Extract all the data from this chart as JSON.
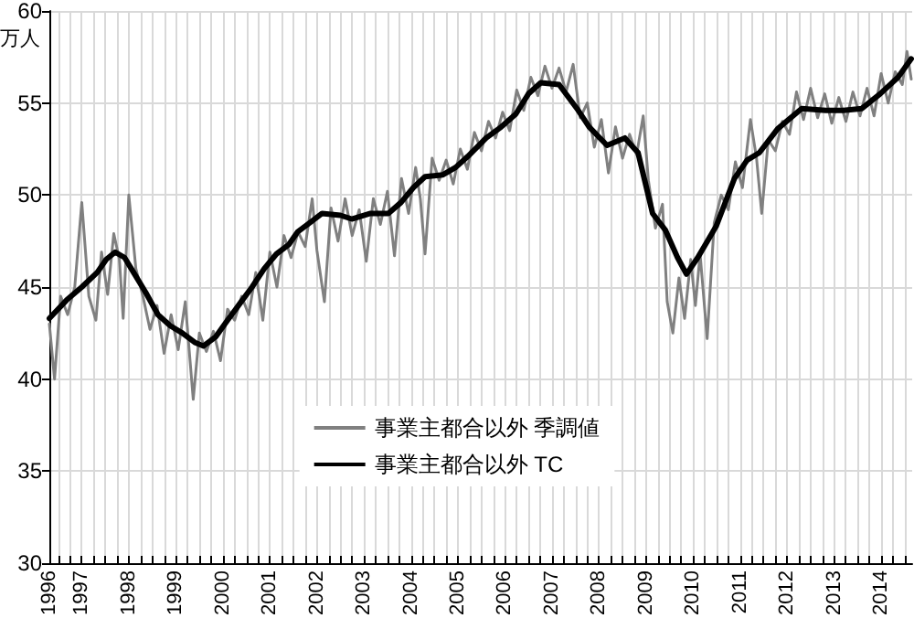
{
  "chart_data": {
    "type": "line",
    "ylabel": "万人",
    "xlim": [
      1996.31,
      2014.66
    ],
    "ylim": [
      30,
      60
    ],
    "yticks": [
      30,
      35,
      40,
      45,
      50,
      55,
      60
    ],
    "xticks": [
      {
        "value": 1996.31,
        "label": "1996"
      },
      {
        "value": 1996.5,
        "label": null
      },
      {
        "value": 1996.75,
        "label": null
      },
      1997,
      {
        "value": 1997.25,
        "label": null
      },
      {
        "value": 1997.5,
        "label": null
      },
      {
        "value": 1997.75,
        "label": null
      },
      1998,
      {
        "value": 1998.25,
        "label": null
      },
      {
        "value": 1998.5,
        "label": null
      },
      {
        "value": 1998.75,
        "label": null
      },
      1999,
      {
        "value": 1999.25,
        "label": null
      },
      {
        "value": 1999.5,
        "label": null
      },
      {
        "value": 1999.75,
        "label": null
      },
      2000,
      {
        "value": 2000.25,
        "label": null
      },
      {
        "value": 2000.5,
        "label": null
      },
      {
        "value": 2000.75,
        "label": null
      },
      2001,
      {
        "value": 2001.25,
        "label": null
      },
      {
        "value": 2001.5,
        "label": null
      },
      {
        "value": 2001.75,
        "label": null
      },
      2002,
      {
        "value": 2002.25,
        "label": null
      },
      {
        "value": 2002.5,
        "label": null
      },
      {
        "value": 2002.75,
        "label": null
      },
      2003,
      {
        "value": 2003.25,
        "label": null
      },
      {
        "value": 2003.5,
        "label": null
      },
      {
        "value": 2003.75,
        "label": null
      },
      2004,
      {
        "value": 2004.25,
        "label": null
      },
      {
        "value": 2004.5,
        "label": null
      },
      {
        "value": 2004.75,
        "label": null
      },
      2005,
      {
        "value": 2005.25,
        "label": null
      },
      {
        "value": 2005.5,
        "label": null
      },
      {
        "value": 2005.75,
        "label": null
      },
      2006,
      {
        "value": 2006.25,
        "label": null
      },
      {
        "value": 2006.5,
        "label": null
      },
      {
        "value": 2006.75,
        "label": null
      },
      2007,
      {
        "value": 2007.25,
        "label": null
      },
      {
        "value": 2007.5,
        "label": null
      },
      {
        "value": 2007.75,
        "label": null
      },
      2008,
      {
        "value": 2008.25,
        "label": null
      },
      {
        "value": 2008.5,
        "label": null
      },
      {
        "value": 2008.75,
        "label": null
      },
      2009,
      {
        "value": 2009.25,
        "label": null
      },
      {
        "value": 2009.5,
        "label": null
      },
      {
        "value": 2009.75,
        "label": null
      },
      2010,
      {
        "value": 2010.25,
        "label": null
      },
      {
        "value": 2010.5,
        "label": null
      },
      {
        "value": 2010.75,
        "label": null
      },
      2011,
      {
        "value": 2011.25,
        "label": null
      },
      {
        "value": 2011.5,
        "label": null
      },
      {
        "value": 2011.75,
        "label": null
      },
      2012,
      {
        "value": 2012.25,
        "label": null
      },
      {
        "value": 2012.5,
        "label": null
      },
      {
        "value": 2012.75,
        "label": null
      },
      2013,
      {
        "value": 2013.25,
        "label": null
      },
      {
        "value": 2013.5,
        "label": null
      },
      {
        "value": 2013.75,
        "label": null
      },
      2014,
      {
        "value": 2014.25,
        "label": null
      },
      {
        "value": 2014.5,
        "label": null
      }
    ],
    "grid": true,
    "legend": "bottom",
    "marker": "none",
    "line_style": "solid",
    "series": [
      {
        "name": "事業主都合以外 季調値",
        "color": "#808080",
        "x": [
          1996.31,
          1996.42,
          1996.55,
          1996.7,
          1996.85,
          1997.0,
          1997.15,
          1997.3,
          1997.42,
          1997.55,
          1997.68,
          1997.8,
          1997.88,
          1998.0,
          1998.15,
          1998.3,
          1998.45,
          1998.6,
          1998.75,
          1998.9,
          1999.05,
          1999.2,
          1999.37,
          1999.5,
          1999.65,
          1999.8,
          1999.95,
          2000.1,
          2000.25,
          2000.4,
          2000.55,
          2000.7,
          2000.85,
          2001.0,
          2001.15,
          2001.3,
          2001.45,
          2001.6,
          2001.75,
          2001.9,
          2002.0,
          2002.16,
          2002.3,
          2002.45,
          2002.6,
          2002.75,
          2002.9,
          2003.05,
          2003.2,
          2003.35,
          2003.5,
          2003.65,
          2003.8,
          2003.95,
          2004.1,
          2004.2,
          2004.3,
          2004.45,
          2004.6,
          2004.75,
          2004.9,
          2005.05,
          2005.2,
          2005.35,
          2005.5,
          2005.65,
          2005.8,
          2005.95,
          2006.1,
          2006.25,
          2006.4,
          2006.55,
          2006.7,
          2006.85,
          2007.0,
          2007.15,
          2007.3,
          2007.45,
          2007.6,
          2007.75,
          2007.9,
          2008.05,
          2008.2,
          2008.35,
          2008.5,
          2008.65,
          2008.8,
          2008.94,
          2009.05,
          2009.2,
          2009.35,
          2009.45,
          2009.57,
          2009.7,
          2009.82,
          2009.95,
          2010.05,
          2010.15,
          2010.3,
          2010.45,
          2010.6,
          2010.75,
          2010.9,
          2011.05,
          2011.22,
          2011.35,
          2011.46,
          2011.6,
          2011.75,
          2011.9,
          2012.05,
          2012.2,
          2012.35,
          2012.5,
          2012.65,
          2012.8,
          2012.95,
          2013.1,
          2013.25,
          2013.4,
          2013.55,
          2013.7,
          2013.85,
          2014.0,
          2014.15,
          2014.3,
          2014.45,
          2014.55,
          2014.64
        ],
        "values": [
          43.0,
          40.0,
          44.5,
          43.5,
          45.0,
          49.6,
          44.5,
          43.2,
          46.9,
          44.6,
          47.9,
          46.5,
          43.3,
          50.0,
          46.0,
          44.5,
          42.7,
          44.0,
          41.4,
          43.5,
          41.6,
          44.2,
          38.9,
          42.5,
          41.5,
          42.6,
          41.0,
          43.8,
          43.2,
          44.5,
          43.5,
          45.8,
          43.2,
          46.9,
          45.0,
          47.8,
          46.6,
          48.0,
          47.2,
          49.8,
          47.0,
          44.2,
          49.3,
          47.5,
          49.8,
          47.8,
          49.2,
          46.4,
          49.8,
          48.4,
          50.2,
          46.7,
          50.9,
          49.0,
          51.5,
          49.8,
          46.8,
          52.0,
          50.8,
          51.9,
          50.6,
          52.5,
          51.4,
          53.4,
          52.4,
          54.0,
          53.1,
          54.5,
          53.5,
          55.7,
          54.6,
          56.4,
          55.4,
          57.0,
          55.8,
          56.9,
          55.6,
          57.1,
          54.2,
          55.0,
          52.6,
          54.1,
          51.2,
          53.7,
          52.0,
          53.3,
          52.2,
          54.3,
          50.8,
          48.2,
          49.5,
          44.2,
          42.5,
          45.5,
          43.3,
          46.5,
          44.0,
          46.8,
          42.2,
          48.5,
          50.0,
          49.2,
          51.8,
          50.4,
          54.1,
          52.0,
          49.0,
          53.0,
          52.4,
          54.0,
          53.3,
          55.6,
          54.1,
          55.8,
          54.2,
          55.5,
          53.9,
          55.3,
          54.0,
          55.6,
          54.3,
          55.8,
          54.3,
          56.6,
          55.0,
          56.7,
          56.0,
          57.8,
          56.3
        ]
      },
      {
        "name": "事業主都合以外 TC",
        "color": "#000000",
        "x": [
          1996.31,
          1996.68,
          1997.0,
          1997.33,
          1997.52,
          1997.71,
          1997.91,
          1998.1,
          1998.36,
          1998.62,
          1998.88,
          1999.14,
          1999.4,
          1999.59,
          1999.85,
          2000.1,
          2000.36,
          2000.62,
          2000.88,
          2001.14,
          2001.4,
          2001.59,
          2001.85,
          2002.11,
          2002.5,
          2002.74,
          2003.14,
          2003.52,
          2003.79,
          2004.05,
          2004.3,
          2004.68,
          2004.95,
          2005.21,
          2005.6,
          2005.92,
          2006.23,
          2006.5,
          2006.76,
          2007.15,
          2007.53,
          2007.79,
          2008.17,
          2008.55,
          2008.83,
          2009.14,
          2009.41,
          2009.67,
          2009.86,
          2010.1,
          2010.49,
          2010.88,
          2011.15,
          2011.41,
          2011.8,
          2012.31,
          2012.82,
          2013.2,
          2013.59,
          2013.98,
          2014.36,
          2014.64
        ],
        "values": [
          43.3,
          44.3,
          45.0,
          45.8,
          46.5,
          46.9,
          46.6,
          45.8,
          44.7,
          43.5,
          42.9,
          42.5,
          42.0,
          41.8,
          42.3,
          43.2,
          44.1,
          45.0,
          46.0,
          46.8,
          47.3,
          48.0,
          48.5,
          49.0,
          48.9,
          48.7,
          49.0,
          49.0,
          49.6,
          50.4,
          51.0,
          51.1,
          51.5,
          52.1,
          53.1,
          53.7,
          54.4,
          55.5,
          56.1,
          56.0,
          54.7,
          53.7,
          52.7,
          53.1,
          52.3,
          49.0,
          48.1,
          46.6,
          45.7,
          46.6,
          48.3,
          50.9,
          51.9,
          52.3,
          53.6,
          54.7,
          54.6,
          54.6,
          54.7,
          55.5,
          56.4,
          57.4
        ]
      }
    ]
  }
}
